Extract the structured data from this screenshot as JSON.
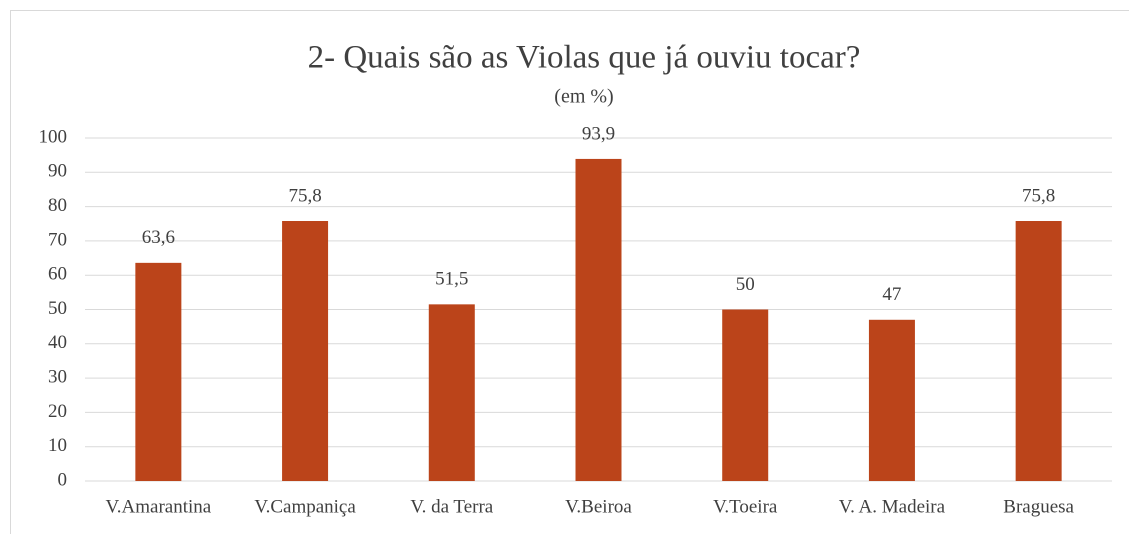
{
  "chart_data": {
    "type": "bar",
    "title": "2- Quais são as Violas que já ouviu tocar?",
    "subtitle": "(em %)",
    "categories": [
      "V.Amarantina",
      "V.Campaniça",
      "V. da Terra",
      "V.Beiroa",
      "V.Toeira",
      "V. A. Madeira",
      "Braguesa"
    ],
    "values": [
      63.6,
      75.8,
      51.5,
      93.9,
      50,
      47,
      75.8
    ],
    "value_labels": [
      "63,6",
      "75,8",
      "51,5",
      "93,9",
      "50",
      "47",
      "75,8"
    ],
    "color": "#bb441a",
    "ylim": [
      0,
      100
    ],
    "yticks": [
      0,
      10,
      20,
      30,
      40,
      50,
      60,
      70,
      80,
      90,
      100
    ],
    "grid": true
  }
}
